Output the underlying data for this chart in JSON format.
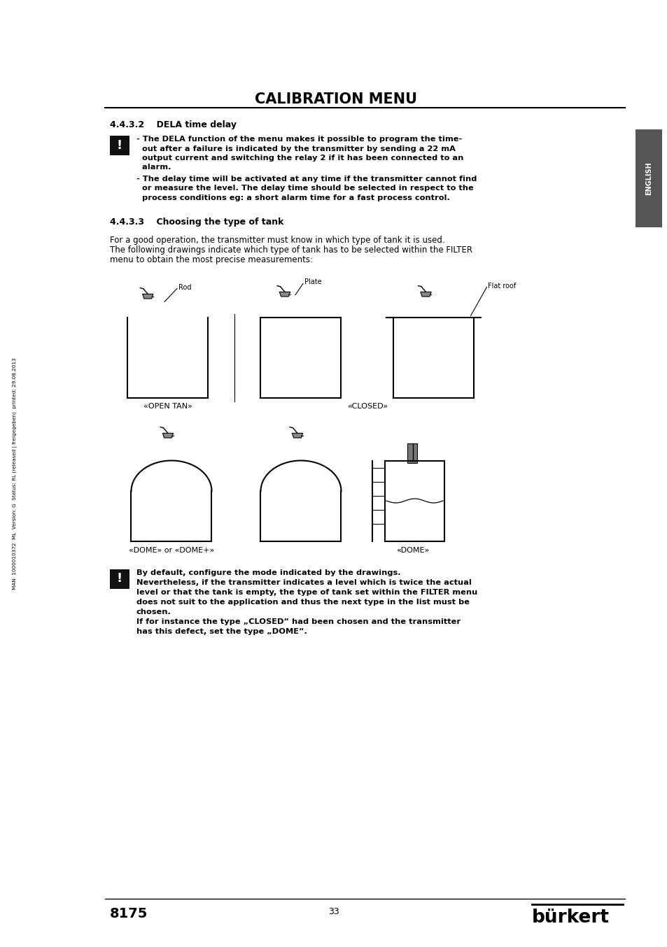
{
  "title": "CALIBRATION MENU",
  "page_bg": "#ffffff",
  "text_color": "#000000",
  "section_442": "4.4.3.2    DELA time delay",
  "section_443": "4.4.3.3    Choosing the type of tank",
  "bullet1_line1": "- The DELA function of the menu makes it possible to program the time-",
  "bullet1_line2": "  out after a failure is indicated by the transmitter by sending a 22 mA",
  "bullet1_line3": "  output current and switching the relay 2 if it has been connected to an",
  "bullet1_line4": "  alarm.",
  "bullet2_line1": "- The delay time will be activated at any time if the transmitter cannot find",
  "bullet2_line2": "  or measure the level. The delay time should be selected in respect to the",
  "bullet2_line3": "  process conditions eg: a short alarm time for a fast process control.",
  "para1": "For a good operation, the transmitter must know in which type of tank it is used.",
  "para2": "The following drawings indicate which type of tank has to be selected within the FILTER",
  "para3": "menu to obtain the most precise measurements:",
  "label_rod": "Rod",
  "label_plate": "Plate",
  "label_flat_roof": "Flat roof",
  "label_open_tan": "«OPEN TAN»",
  "label_closed": "«CLOSED»",
  "label_dome_or": "«DOME» or «DOME+»",
  "label_dome": "«DOME»",
  "footer_line1": "By default, configure the mode indicated by the drawings.",
  "footer_line2": "Nevertheless, if the transmitter indicates a level which is twice the actual",
  "footer_line3": "level or that the tank is empty, the type of tank set within the FILTER menu",
  "footer_line4": "does not suit to the application and thus the next type in the list must be",
  "footer_line5": "chosen.",
  "footer_line6": "If for instance the type „CLOSED“ had been chosen and the transmitter",
  "footer_line7": "has this defect, set the type „DOME“.",
  "page_number": "33",
  "model_number": "8175",
  "sidebar_text": "MAN  1000010372  ML  Version: G  Status: RL (released | freigegeben)  printed: 29.08.2013",
  "english_tab_text": "ENGLISH"
}
